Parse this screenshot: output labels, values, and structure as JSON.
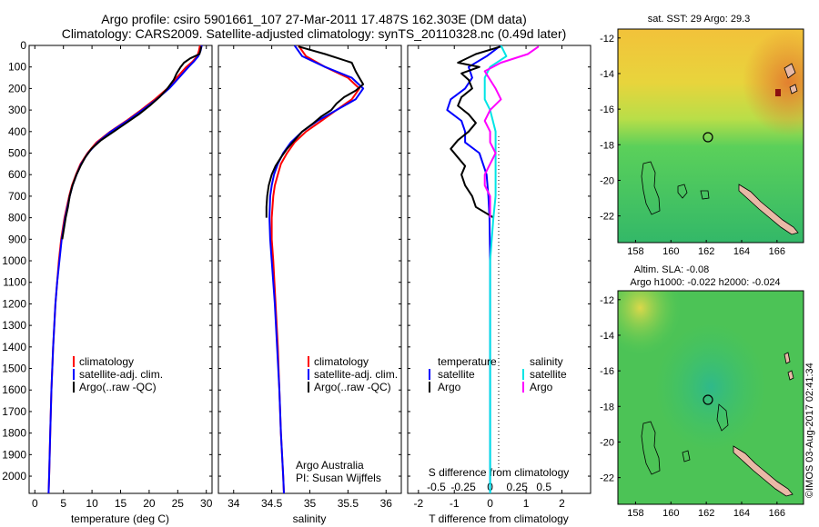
{
  "title": {
    "line1": "Argo profile: csiro 5901661_107 27-Mar-2011 17.487S 162.303E (DM data)",
    "line2": "Climatology: CARS2009. Satellite-adjusted climatology: synTS_20110328.nc (0.49d later)"
  },
  "colors": {
    "climatology": "#ff0000",
    "satellite": "#0000ff",
    "argo": "#000000",
    "sal_satellite": "#00e5e5",
    "sal_argo": "#ff00ff"
  },
  "chart_data": [
    {
      "type": "line",
      "id": "temperature",
      "xlabel": "temperature (deg C)",
      "xlim": [
        -1,
        31
      ],
      "ylim": [
        2080,
        0
      ],
      "xticks": [
        0,
        5,
        10,
        15,
        20,
        25,
        30
      ],
      "xtick_labels": [
        "0",
        "5",
        "10",
        "15",
        "20",
        "25",
        "30"
      ],
      "yticks": [
        0,
        100,
        200,
        300,
        400,
        500,
        600,
        700,
        800,
        900,
        1000,
        1100,
        1200,
        1300,
        1400,
        1500,
        1600,
        1700,
        1800,
        1900,
        2000
      ],
      "ytick_labels": [
        "0",
        "100",
        "200",
        "300",
        "400",
        "500",
        "600",
        "700",
        "800",
        "900",
        "1000",
        "1100",
        "1200",
        "1300",
        "1400",
        "1500",
        "1600",
        "1700",
        "1800",
        "1900",
        "2000"
      ],
      "legend": {
        "placement": "lower-center",
        "labels": [
          "climatology",
          "satellite-adj. clim.",
          "Argo(..raw -QC)"
        ]
      },
      "series": [
        {
          "name": "climatology",
          "color": "#ff0000",
          "depth": [
            0,
            25,
            50,
            75,
            100,
            150,
            200,
            250,
            300,
            350,
            400,
            450,
            500,
            550,
            600,
            650,
            700,
            800,
            900,
            1000,
            1100,
            1200,
            1400,
            1600,
            1800,
            2000,
            2080
          ],
          "values": [
            28.9,
            28.7,
            28.4,
            27.6,
            26.5,
            24.8,
            23.2,
            21.0,
            18.6,
            16.0,
            13.2,
            10.8,
            9.2,
            8.0,
            7.2,
            6.5,
            6.0,
            5.2,
            4.6,
            4.2,
            3.9,
            3.6,
            3.2,
            2.9,
            2.7,
            2.5,
            2.4
          ]
        },
        {
          "name": "satellite",
          "color": "#0000ff",
          "depth": [
            0,
            25,
            50,
            75,
            100,
            150,
            200,
            250,
            300,
            350,
            400,
            450,
            500,
            550,
            600,
            650,
            700,
            800,
            900,
            1000,
            1100,
            1200,
            1400,
            1600,
            1800,
            2000,
            2080
          ],
          "values": [
            29.2,
            29.0,
            28.6,
            27.8,
            26.9,
            25.2,
            23.5,
            21.3,
            18.8,
            16.2,
            13.3,
            11.0,
            9.3,
            8.1,
            7.3,
            6.6,
            6.1,
            5.3,
            4.7,
            4.3,
            3.9,
            3.6,
            3.2,
            2.9,
            2.7,
            2.5,
            2.4
          ]
        },
        {
          "name": "Argo",
          "color": "#000000",
          "depth": [
            5,
            20,
            40,
            60,
            80,
            100,
            130,
            160,
            200,
            240,
            280,
            320,
            360,
            400,
            440,
            480,
            520,
            560,
            600,
            650,
            700,
            750,
            800,
            850,
            900
          ],
          "values": [
            29.1,
            29.0,
            28.8,
            27.2,
            26.1,
            25.5,
            24.8,
            24.3,
            23.2,
            21.8,
            20.1,
            18.2,
            16.0,
            13.8,
            11.6,
            9.9,
            8.8,
            8.0,
            7.3,
            6.6,
            6.1,
            5.8,
            5.4,
            5.1,
            4.8
          ]
        }
      ]
    },
    {
      "type": "line",
      "id": "salinity",
      "xlabel": "salinity",
      "xlim": [
        33.8,
        36.2
      ],
      "ylim": [
        2080,
        0
      ],
      "xticks": [
        34,
        34.5,
        35,
        35.5,
        36
      ],
      "xtick_labels": [
        "34",
        "34.5",
        "35",
        "35.5",
        "36"
      ],
      "legend": {
        "placement": "middle-center",
        "labels": [
          "climatology",
          "satellite-adj. clim.",
          "Argo(..raw -QC)"
        ]
      },
      "annotation": {
        "line1": "Argo Australia",
        "line2": "PI: Susan Wijffels"
      },
      "series": [
        {
          "name": "climatology",
          "color": "#ff0000",
          "depth": [
            0,
            50,
            100,
            150,
            200,
            250,
            300,
            350,
            400,
            450,
            500,
            550,
            600,
            650,
            700,
            800,
            900,
            1000,
            1200,
            1400,
            1600,
            1800,
            2000,
            2080
          ],
          "values": [
            34.85,
            34.95,
            35.2,
            35.5,
            35.65,
            35.55,
            35.35,
            35.15,
            34.95,
            34.8,
            34.7,
            34.62,
            34.58,
            34.54,
            34.52,
            34.5,
            34.5,
            34.52,
            34.55,
            34.58,
            34.6,
            34.62,
            34.65,
            34.66
          ]
        },
        {
          "name": "satellite",
          "color": "#0000ff",
          "depth": [
            0,
            50,
            100,
            150,
            200,
            250,
            300,
            350,
            400,
            450,
            500,
            550,
            600,
            650,
            700,
            800,
            900,
            1000,
            1200,
            1400,
            1600,
            1800,
            2000,
            2080
          ],
          "values": [
            34.8,
            34.9,
            35.2,
            35.55,
            35.7,
            35.6,
            35.35,
            35.1,
            34.9,
            34.75,
            34.65,
            34.58,
            34.53,
            34.5,
            34.48,
            34.47,
            34.48,
            34.5,
            34.54,
            34.57,
            34.6,
            34.62,
            34.65,
            34.66
          ]
        },
        {
          "name": "Argo",
          "color": "#000000",
          "depth": [
            5,
            40,
            80,
            120,
            150,
            180,
            210,
            240,
            270,
            300,
            330,
            360,
            400,
            440,
            480,
            520,
            560,
            600,
            650,
            700,
            750,
            800
          ],
          "values": [
            34.85,
            35.2,
            35.55,
            35.6,
            35.65,
            35.7,
            35.6,
            35.45,
            35.35,
            35.28,
            35.15,
            35.05,
            34.9,
            34.8,
            34.7,
            34.62,
            34.55,
            34.5,
            34.46,
            34.44,
            34.43,
            34.43
          ]
        }
      ]
    },
    {
      "type": "line",
      "id": "differences",
      "xlabel_bottom": "T difference from climatology",
      "xlabel_top": "S difference from climatology",
      "xlim": [
        -2.3,
        2.8
      ],
      "ylim": [
        2080,
        0
      ],
      "xticks": [
        -2,
        -1,
        0,
        1,
        2
      ],
      "xtick_labels": [
        "-2",
        "-1",
        "0",
        "1",
        "2"
      ],
      "sticks": [
        -0.5,
        -0.25,
        0,
        0.25,
        0.5
      ],
      "stick_labels": [
        "-0.5",
        "-0.25",
        "0",
        "0.25",
        "0.5"
      ],
      "legend": {
        "placement": "middle",
        "temperature_title": "temperature",
        "salinity_title": "salinity",
        "labels": [
          "satellite",
          "Argo",
          "satellite",
          "Argo"
        ]
      },
      "series": [
        {
          "name": "T satellite",
          "color": "#0000ff",
          "depth": [
            0,
            50,
            100,
            150,
            200,
            250,
            300,
            350,
            400,
            450,
            500,
            600,
            700,
            800,
            1000,
            1200,
            1600,
            2000,
            2080
          ],
          "values": [
            0.3,
            -0.1,
            -0.6,
            -0.5,
            -0.7,
            -1.1,
            -1.2,
            -0.8,
            -0.7,
            -0.7,
            -0.3,
            -0.1,
            -0.05,
            -0.02,
            0.0,
            0.0,
            0.0,
            0.0,
            0.0
          ]
        },
        {
          "name": "T Argo",
          "color": "#000000",
          "depth": [
            5,
            40,
            80,
            100,
            130,
            160,
            200,
            240,
            280,
            320,
            360,
            400,
            440,
            480,
            520,
            560,
            600,
            650,
            700,
            750,
            800
          ],
          "values": [
            0.3,
            -0.4,
            -0.9,
            -0.3,
            -0.8,
            -0.6,
            -0.5,
            -0.8,
            -0.9,
            -0.6,
            -0.4,
            -0.6,
            -0.9,
            -1.1,
            -0.9,
            -0.7,
            -0.8,
            -0.7,
            -0.5,
            -0.4,
            0.1
          ]
        },
        {
          "name": "S satellite",
          "color": "#00e5e5",
          "depth": [
            0,
            50,
            100,
            150,
            200,
            250,
            300,
            400,
            500,
            600,
            700,
            800,
            1000,
            1200,
            1600,
            2000,
            2080
          ],
          "values": [
            0.1,
            0.15,
            0.0,
            -0.05,
            -0.05,
            -0.05,
            0.0,
            0.05,
            0.05,
            0.05,
            0.05,
            0.03,
            0.0,
            0.0,
            0.0,
            0.0,
            0.0
          ]
        },
        {
          "name": "S Argo",
          "color": "#ff00ff",
          "depth": [
            5,
            40,
            80,
            120,
            160,
            200,
            250,
            300,
            350,
            400,
            450,
            500,
            550,
            600,
            650,
            700,
            750,
            800
          ],
          "values": [
            0.45,
            0.35,
            0.1,
            -0.05,
            0.0,
            0.05,
            0.1,
            0.0,
            -0.05,
            0.0,
            0.0,
            0.05,
            0.0,
            -0.05,
            -0.05,
            0.0,
            0.0,
            0.0
          ]
        }
      ]
    },
    {
      "type": "heatmap",
      "id": "sst_map",
      "title": "sat. SST: 29 Argo: 29.3",
      "xticks": [
        158,
        160,
        162,
        164,
        166
      ],
      "xtick_labels": [
        "158",
        "160",
        "162",
        "164",
        "166"
      ],
      "yticks": [
        -12,
        -14,
        -16,
        -18,
        -20,
        -22
      ],
      "ytick_labels": [
        "-12",
        "-14",
        "-16",
        "-18",
        "-20",
        "-22"
      ],
      "xlim": [
        157,
        167.5
      ],
      "ylim": [
        -11.5,
        -23.5
      ],
      "argo_position": [
        162.3,
        -17.5
      ]
    },
    {
      "type": "heatmap",
      "id": "sla_map",
      "title_line1": "Altim. SLA: -0.08",
      "title_line2": "Argo h1000: -0.022 h2000: -0.024",
      "xticks": [
        158,
        160,
        162,
        164,
        166
      ],
      "xtick_labels": [
        "158",
        "160",
        "162",
        "164",
        "166"
      ],
      "yticks": [
        -12,
        -14,
        -16,
        -18,
        -20,
        -22
      ],
      "ytick_labels": [
        "-12",
        "-14",
        "-16",
        "-18",
        "-20",
        "-22"
      ],
      "xlim": [
        157,
        167.5
      ],
      "ylim": [
        -11.5,
        -23.5
      ],
      "argo_position": [
        162.3,
        -17.5
      ]
    }
  ],
  "footer": {
    "stamp": "©IMOS 03-Aug-2017 02:41:34"
  }
}
